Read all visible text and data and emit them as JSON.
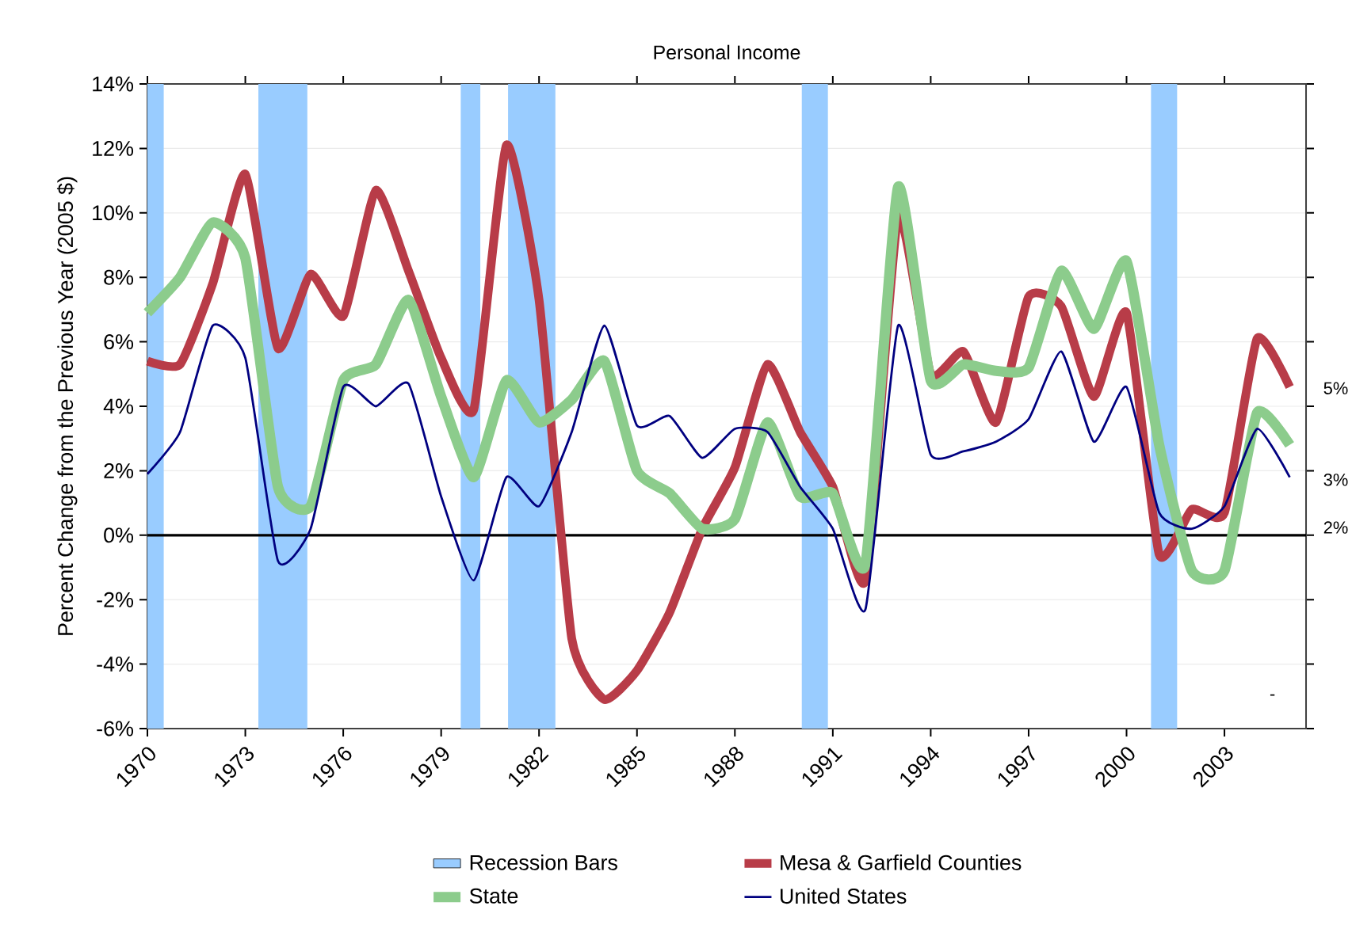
{
  "chart_data": {
    "type": "line",
    "title": "Personal Income",
    "ylabel": "Percent Change from the Previous Year (2005 $)",
    "x": [
      1970,
      1971,
      1972,
      1973,
      1974,
      1975,
      1976,
      1977,
      1978,
      1979,
      1980,
      1981,
      1982,
      1983,
      1984,
      1985,
      1986,
      1987,
      1988,
      1989,
      1990,
      1991,
      1992,
      1993,
      1994,
      1995,
      1996,
      1997,
      1998,
      1999,
      2000,
      2001,
      2002,
      2003,
      2004,
      2005
    ],
    "series": [
      {
        "name": "Mesa & Garfield Counties",
        "color": "#b83c48",
        "values": [
          5.4,
          5.3,
          7.8,
          11.2,
          5.8,
          8.1,
          6.8,
          10.7,
          8.2,
          5.5,
          3.9,
          12.1,
          7.3,
          -3.2,
          -5.1,
          -4.2,
          -2.4,
          0.2,
          2.1,
          5.3,
          3.2,
          1.5,
          -1.4,
          9.9,
          5.0,
          5.7,
          3.5,
          7.4,
          7.1,
          4.3,
          6.9,
          -0.6,
          0.8,
          0.7,
          6.1,
          4.6
        ]
      },
      {
        "name": "State",
        "color": "#8ccc8c",
        "values": [
          6.9,
          8.0,
          9.7,
          8.6,
          1.5,
          0.9,
          4.8,
          5.3,
          7.3,
          4.3,
          1.8,
          4.8,
          3.5,
          4.2,
          5.4,
          2.0,
          1.3,
          0.2,
          0.5,
          3.5,
          1.2,
          1.3,
          -0.9,
          10.8,
          4.8,
          5.3,
          5.1,
          5.2,
          8.2,
          6.4,
          8.5,
          2.8,
          -1.1,
          -1.1,
          3.8,
          2.8
        ]
      },
      {
        "name": "United States",
        "color": "#000080",
        "values": [
          1.9,
          3.2,
          6.5,
          5.5,
          -0.8,
          0.2,
          4.6,
          4.0,
          4.7,
          1.2,
          -1.4,
          1.8,
          0.9,
          3.2,
          6.5,
          3.4,
          3.7,
          2.4,
          3.3,
          3.2,
          1.5,
          0.2,
          -2.3,
          6.5,
          2.5,
          2.6,
          2.9,
          3.6,
          5.7,
          2.9,
          4.6,
          0.7,
          0.2,
          0.9,
          3.3,
          1.8
        ]
      }
    ],
    "bands": [
      {
        "axis": "x",
        "from": 1970,
        "to": 1970.5,
        "label": "Recession Bars",
        "color": "#99ccff"
      },
      {
        "axis": "x",
        "from": 1973.4,
        "to": 1974.9,
        "color": "#99ccff"
      },
      {
        "axis": "x",
        "from": 1979.6,
        "to": 1980.2,
        "color": "#99ccff"
      },
      {
        "axis": "x",
        "from": 1981.05,
        "to": 1982.5,
        "color": "#99ccff"
      },
      {
        "axis": "x",
        "from": 1990.05,
        "to": 1990.85,
        "color": "#99ccff"
      },
      {
        "axis": "x",
        "from": 2000.75,
        "to": 2001.55,
        "color": "#99ccff"
      }
    ],
    "ref_lines": [
      {
        "axis": "y",
        "value": 0,
        "color": "#000000"
      }
    ],
    "annotations": [
      "5%",
      "3%",
      "2%",
      "-"
    ],
    "xlim": [
      1970,
      2005.5
    ],
    "xticks": [
      1970,
      1973,
      1976,
      1979,
      1982,
      1985,
      1988,
      1991,
      1994,
      1997,
      2000,
      2003
    ],
    "ylim": [
      -6,
      14
    ],
    "yticks": [
      {
        "value": -6,
        "label": "-6%"
      },
      {
        "value": -4,
        "label": "-4%"
      },
      {
        "value": -2,
        "label": "-2%"
      },
      {
        "value": 0,
        "label": "0%"
      },
      {
        "value": 2,
        "label": "2%"
      },
      {
        "value": 4,
        "label": "4%"
      },
      {
        "value": 6,
        "label": "6%"
      },
      {
        "value": 8,
        "label": "8%"
      },
      {
        "value": 10,
        "label": "10%"
      },
      {
        "value": 12,
        "label": "12%"
      },
      {
        "value": 14,
        "label": "14%"
      }
    ],
    "grid": "y",
    "legend": "bottom",
    "marker": "none",
    "line_style": "solid"
  }
}
